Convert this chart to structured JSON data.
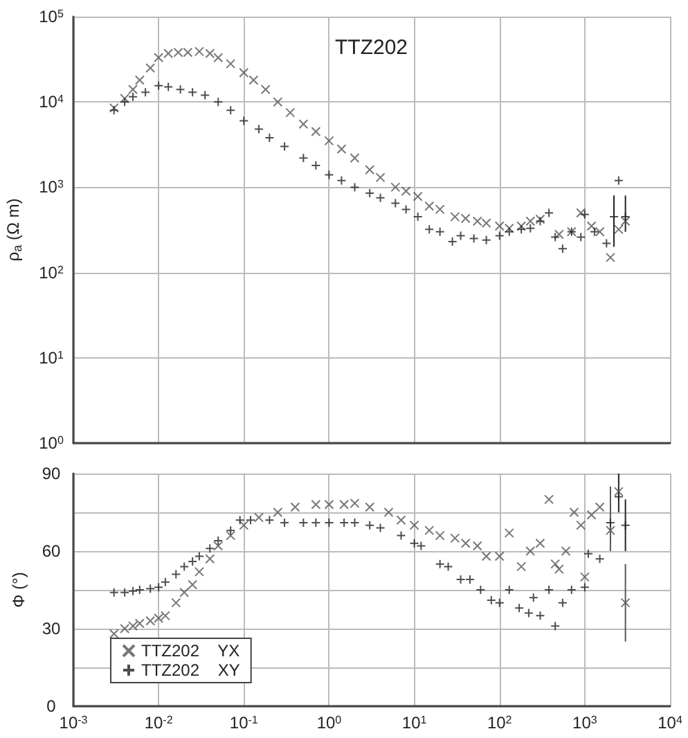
{
  "chart_data": [
    {
      "type": "scatter",
      "title": "TTZ202",
      "ylabel": "ρ$_{a}$ (Ω m)",
      "log": "xy",
      "grid": true,
      "legend": false,
      "tick_labels": "y",
      "xlim": [
        0.001,
        10000
      ],
      "xticks": [
        {
          "value": 0.001,
          "label": null
        },
        {
          "value": 0.01,
          "label": null
        },
        {
          "value": 0.1,
          "label": null
        },
        {
          "value": 1,
          "label": null
        },
        {
          "value": 10,
          "label": null
        },
        {
          "value": 100,
          "label": null
        },
        {
          "value": 1000,
          "label": null
        },
        {
          "value": 10000,
          "label": null
        }
      ],
      "ylim": [
        1,
        100000
      ],
      "yticks": [
        {
          "value": 1,
          "label": "10$^{0}$"
        },
        {
          "value": 10,
          "label": "10$^{1}$"
        },
        {
          "value": 100,
          "label": "10$^{2}$"
        },
        {
          "value": 1000,
          "label": "10$^{3}$"
        },
        {
          "value": 10000,
          "label": "10$^{4}$"
        },
        {
          "value": 100000,
          "label": "10$^{5}$"
        }
      ],
      "series": [
        {
          "color": "#555555",
          "marker": "x",
          "x": [
            0.003,
            0.004,
            0.005,
            0.006,
            0.008,
            0.01,
            0.013,
            0.017,
            0.022,
            0.03,
            0.04,
            0.05,
            0.07,
            0.1,
            0.13,
            0.18,
            0.25,
            0.35,
            0.5,
            0.7,
            1,
            1.4,
            2,
            3,
            4,
            6,
            8,
            11,
            15,
            20,
            30,
            40,
            55,
            70,
            100,
            130,
            180,
            230,
            300,
            500,
            700,
            900,
            1200,
            1500,
            2000,
            2500,
            3000
          ],
          "values": [
            8500,
            11000,
            14000,
            18000,
            25000,
            33000,
            37000,
            38000,
            38000,
            39000,
            37000,
            33000,
            28000,
            22000,
            18000,
            14000,
            10000,
            7500,
            5500,
            4500,
            3500,
            2800,
            2200,
            1600,
            1300,
            1000,
            900,
            780,
            600,
            550,
            450,
            430,
            400,
            380,
            350,
            330,
            350,
            400,
            420,
            280,
            300,
            500,
            350,
            300,
            150,
            320,
            400
          ]
        },
        {
          "color": "#222222",
          "marker": "cross",
          "x": [
            0.003,
            0.004,
            0.005,
            0.007,
            0.01,
            0.013,
            0.018,
            0.025,
            0.035,
            0.05,
            0.07,
            0.1,
            0.15,
            0.2,
            0.3,
            0.5,
            0.7,
            1,
            1.4,
            2,
            3,
            4,
            6,
            8,
            11,
            15,
            20,
            28,
            35,
            50,
            70,
            100,
            130,
            180,
            230,
            300,
            380,
            450,
            550,
            700,
            900,
            1000,
            1300,
            1800,
            2200,
            2500,
            3000
          ],
          "values": [
            8000,
            10000,
            11500,
            13000,
            15500,
            15000,
            14000,
            13000,
            12000,
            10000,
            8000,
            6000,
            4800,
            3800,
            3000,
            2200,
            1800,
            1400,
            1200,
            1000,
            850,
            750,
            650,
            550,
            450,
            320,
            300,
            230,
            270,
            250,
            240,
            270,
            300,
            320,
            330,
            400,
            500,
            260,
            190,
            300,
            260,
            480,
            300,
            220,
            450,
            1200,
            450
          ],
          "errors": [
            null,
            null,
            null,
            null,
            null,
            null,
            null,
            null,
            null,
            null,
            null,
            null,
            null,
            null,
            null,
            null,
            null,
            null,
            null,
            null,
            null,
            null,
            null,
            null,
            null,
            null,
            null,
            null,
            null,
            null,
            null,
            null,
            null,
            null,
            null,
            null,
            null,
            null,
            null,
            null,
            null,
            null,
            null,
            null,
            [
              200,
              800
            ],
            null,
            [
              300,
              800
            ]
          ]
        }
      ]
    },
    {
      "type": "scatter",
      "ylabel": "Φ (°)",
      "log": "x",
      "grid": true,
      "legend": "bottom left",
      "xlim": [
        0.001,
        10000
      ],
      "xticks": [
        {
          "value": 0.001,
          "label": "10$^{-3}$"
        },
        {
          "value": 0.01,
          "label": "10$^{-2}$"
        },
        {
          "value": 0.1,
          "label": "10$^{-1}$"
        },
        {
          "value": 1,
          "label": "10$^{0}$"
        },
        {
          "value": 10,
          "label": "10$^{1}$"
        },
        {
          "value": 100,
          "label": "10$^{2}$"
        },
        {
          "value": 1000,
          "label": "10$^{3}$"
        },
        {
          "value": 10000,
          "label": "10$^{4}$"
        }
      ],
      "ylim": [
        0,
        90
      ],
      "yticks": [
        0,
        {
          "value": 15,
          "label": null
        },
        30,
        {
          "value": 45,
          "label": null
        },
        60,
        {
          "value": 75,
          "label": null
        },
        90
      ],
      "series": [
        {
          "name": "TTZ202    YX",
          "color": "#555555",
          "marker": "x",
          "x": [
            0.003,
            0.004,
            0.005,
            0.006,
            0.008,
            0.01,
            0.012,
            0.016,
            0.02,
            0.025,
            0.03,
            0.04,
            0.05,
            0.07,
            0.1,
            0.15,
            0.25,
            0.4,
            0.7,
            1,
            1.5,
            2,
            3,
            5,
            7,
            10,
            15,
            20,
            30,
            40,
            55,
            70,
            100,
            130,
            180,
            230,
            300,
            380,
            450,
            500,
            600,
            750,
            900,
            1000,
            1200,
            1500,
            2000,
            2500,
            3000
          ],
          "values": [
            28,
            30,
            31,
            32,
            33,
            34,
            35,
            40,
            44,
            47,
            52,
            57,
            62,
            66,
            70,
            73,
            75,
            77,
            78,
            78,
            78,
            78.5,
            77,
            75,
            72,
            70,
            68,
            66,
            65,
            63,
            62,
            58,
            58,
            67,
            54,
            60,
            63,
            80,
            55,
            53,
            60,
            75,
            70,
            50,
            74,
            77,
            68,
            83,
            40
          ],
          "errors": [
            null,
            null,
            null,
            null,
            null,
            null,
            null,
            null,
            null,
            null,
            null,
            null,
            null,
            null,
            null,
            null,
            null,
            null,
            null,
            null,
            null,
            null,
            null,
            null,
            null,
            null,
            null,
            null,
            null,
            null,
            null,
            null,
            null,
            null,
            null,
            null,
            null,
            null,
            null,
            null,
            null,
            null,
            null,
            null,
            null,
            null,
            [
              60,
              85
            ],
            null,
            [
              25,
              55
            ]
          ]
        },
        {
          "name": "TTZ202    XY",
          "color": "#222222",
          "marker": "cross",
          "x": [
            0.003,
            0.004,
            0.005,
            0.006,
            0.008,
            0.01,
            0.012,
            0.016,
            0.02,
            0.025,
            0.03,
            0.04,
            0.05,
            0.07,
            0.09,
            0.12,
            0.2,
            0.3,
            0.5,
            0.7,
            1,
            1.5,
            2,
            3,
            4,
            7,
            10,
            12,
            20,
            25,
            35,
            45,
            60,
            80,
            100,
            130,
            170,
            220,
            250,
            300,
            380,
            450,
            550,
            700,
            1000,
            1100,
            1500,
            2000,
            2500,
            3000
          ],
          "values": [
            44,
            44,
            44.5,
            45,
            45.5,
            46,
            48,
            51,
            54,
            56,
            58,
            61,
            64,
            68,
            72,
            72,
            72,
            71,
            71,
            71,
            71,
            71,
            71,
            70,
            69,
            66,
            63,
            62,
            55,
            54,
            49,
            49,
            45,
            41,
            40,
            45,
            38,
            36,
            42,
            35,
            45,
            31,
            40,
            45,
            46,
            59,
            57,
            71,
            81,
            70
          ],
          "errors": [
            null,
            null,
            null,
            null,
            null,
            null,
            null,
            null,
            null,
            null,
            null,
            null,
            null,
            null,
            null,
            null,
            null,
            null,
            null,
            null,
            null,
            null,
            null,
            null,
            null,
            null,
            null,
            null,
            null,
            null,
            null,
            null,
            null,
            null,
            null,
            null,
            null,
            null,
            null,
            null,
            null,
            null,
            null,
            null,
            null,
            null,
            null,
            null,
            [
              75,
              90
            ],
            [
              60,
              80
            ]
          ]
        }
      ]
    }
  ]
}
